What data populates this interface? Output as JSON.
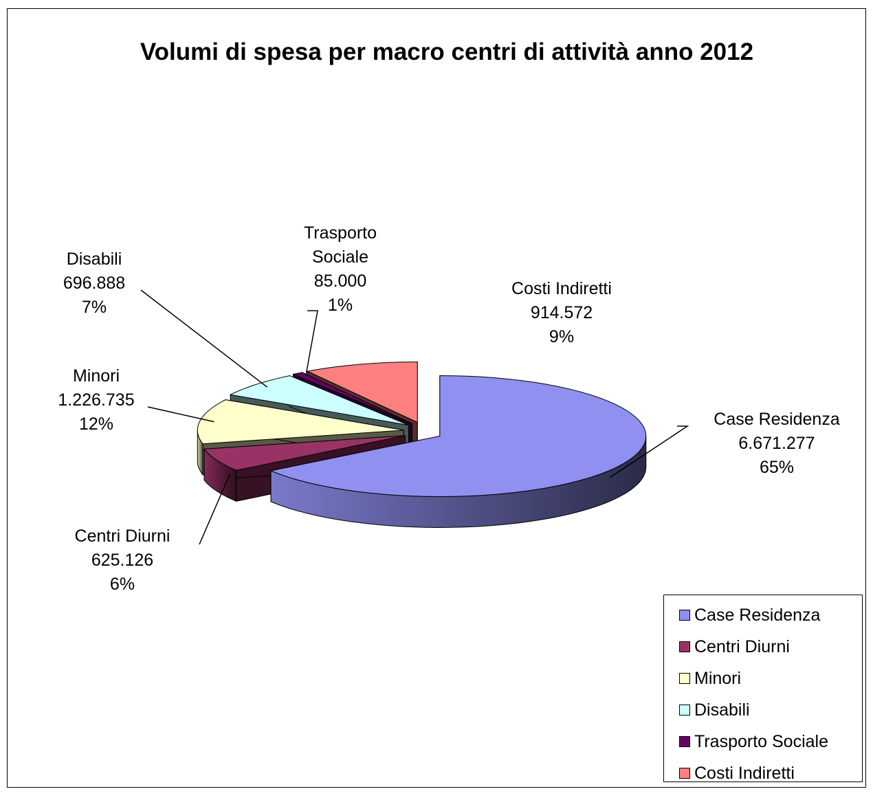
{
  "chart_data": {
    "type": "pie3d",
    "title": "Volumi di spesa per macro centri di attività anno 2012",
    "categories": [
      "Case Residenza",
      "Centri Diurni",
      "Minori",
      "Disabili",
      "Trasporto Sociale",
      "Costi Indiretti"
    ],
    "values": [
      6671277,
      625126,
      1226735,
      696888,
      85000,
      914572
    ],
    "value_labels": [
      "6.671.277",
      "625.126",
      "1.226.735",
      "696.888",
      "85.000",
      "914.572"
    ],
    "percents": [
      65,
      6,
      12,
      7,
      1,
      9
    ],
    "percent_labels": [
      "65%",
      "6%",
      "12%",
      "7%",
      "1%",
      "9%"
    ],
    "colors": [
      "#9090f0",
      "#993366",
      "#ffffcc",
      "#ccffff",
      "#660066",
      "#ff8080"
    ],
    "legend": "bottom-right"
  }
}
